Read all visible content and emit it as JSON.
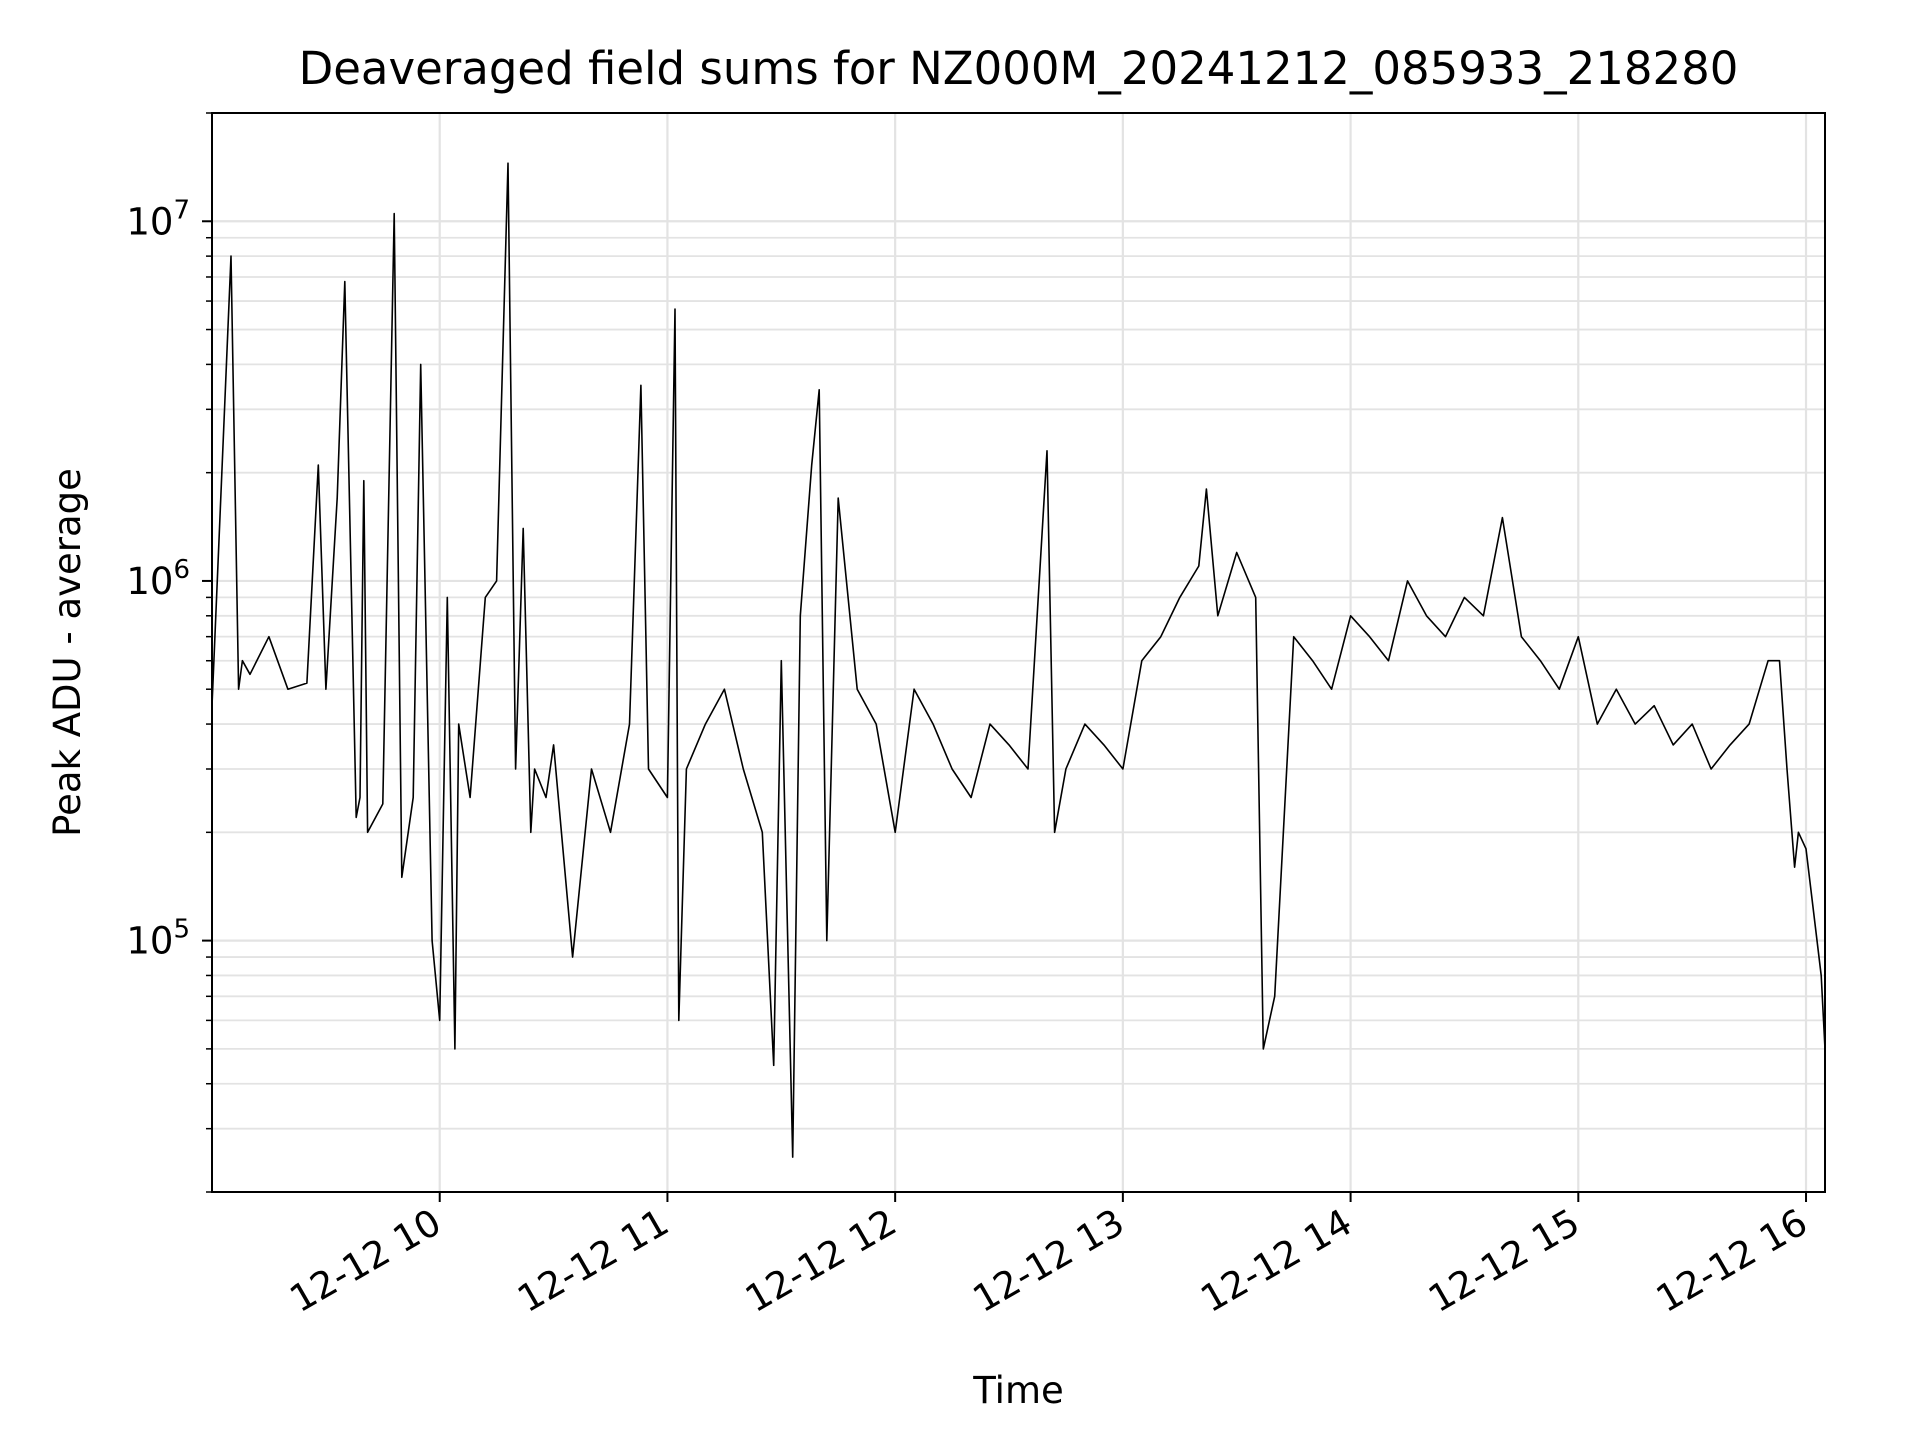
{
  "chart_data": {
    "type": "line",
    "title": "Deaveraged field sums for NZ000M_20241212_085933_218280",
    "xlabel": "Time",
    "ylabel": "Peak ADU - average",
    "yscale": "log",
    "xlim": [
      "2024-12-12 09:00",
      "2024-12-12 16:05"
    ],
    "ylim": [
      20000,
      20000000
    ],
    "x_ticks": [
      {
        "time": "2024-12-12 10:00",
        "label": "12-12 10"
      },
      {
        "time": "2024-12-12 11:00",
        "label": "12-12 11"
      },
      {
        "time": "2024-12-12 12:00",
        "label": "12-12 12"
      },
      {
        "time": "2024-12-12 13:00",
        "label": "12-12 13"
      },
      {
        "time": "2024-12-12 14:00",
        "label": "12-12 14"
      },
      {
        "time": "2024-12-12 15:00",
        "label": "12-12 15"
      },
      {
        "time": "2024-12-12 16:00",
        "label": "12-12 16"
      }
    ],
    "y_ticks": [
      {
        "value": 100000,
        "label_base": "10",
        "label_exp": "5"
      },
      {
        "value": 1000000,
        "label_base": "10",
        "label_exp": "6"
      },
      {
        "value": 10000000,
        "label_base": "10",
        "label_exp": "7"
      }
    ],
    "grid": true,
    "line_color": "#000000",
    "series": [
      {
        "x": [
          "2024-12-12 09:00",
          "2024-12-12 09:05",
          "2024-12-12 09:07",
          "2024-12-12 09:08",
          "2024-12-12 09:10",
          "2024-12-12 09:15",
          "2024-12-12 09:20",
          "2024-12-12 09:25",
          "2024-12-12 09:28",
          "2024-12-12 09:30",
          "2024-12-12 09:33",
          "2024-12-12 09:35",
          "2024-12-12 09:38",
          "2024-12-12 09:39",
          "2024-12-12 09:40",
          "2024-12-12 09:41",
          "2024-12-12 09:45",
          "2024-12-12 09:48",
          "2024-12-12 09:50",
          "2024-12-12 09:53",
          "2024-12-12 09:55",
          "2024-12-12 09:58",
          "2024-12-12 10:00",
          "2024-12-12 10:02",
          "2024-12-12 10:04",
          "2024-12-12 10:05",
          "2024-12-12 10:08",
          "2024-12-12 10:12",
          "2024-12-12 10:15",
          "2024-12-12 10:18",
          "2024-12-12 10:20",
          "2024-12-12 10:22",
          "2024-12-12 10:24",
          "2024-12-12 10:25",
          "2024-12-12 10:28",
          "2024-12-12 10:30",
          "2024-12-12 10:35",
          "2024-12-12 10:40",
          "2024-12-12 10:45",
          "2024-12-12 10:50",
          "2024-12-12 10:53",
          "2024-12-12 10:55",
          "2024-12-12 11:00",
          "2024-12-12 11:02",
          "2024-12-12 11:03",
          "2024-12-12 11:05",
          "2024-12-12 11:10",
          "2024-12-12 11:15",
          "2024-12-12 11:20",
          "2024-12-12 11:25",
          "2024-12-12 11:28",
          "2024-12-12 11:30",
          "2024-12-12 11:33",
          "2024-12-12 11:35",
          "2024-12-12 11:38",
          "2024-12-12 11:40",
          "2024-12-12 11:42",
          "2024-12-12 11:45",
          "2024-12-12 11:50",
          "2024-12-12 11:55",
          "2024-12-12 12:00",
          "2024-12-12 12:05",
          "2024-12-12 12:10",
          "2024-12-12 12:15",
          "2024-12-12 12:20",
          "2024-12-12 12:25",
          "2024-12-12 12:30",
          "2024-12-12 12:35",
          "2024-12-12 12:40",
          "2024-12-12 12:42",
          "2024-12-12 12:45",
          "2024-12-12 12:50",
          "2024-12-12 12:55",
          "2024-12-12 13:00",
          "2024-12-12 13:05",
          "2024-12-12 13:10",
          "2024-12-12 13:15",
          "2024-12-12 13:20",
          "2024-12-12 13:22",
          "2024-12-12 13:25",
          "2024-12-12 13:30",
          "2024-12-12 13:35",
          "2024-12-12 13:37",
          "2024-12-12 13:40",
          "2024-12-12 13:45",
          "2024-12-12 13:50",
          "2024-12-12 13:55",
          "2024-12-12 14:00",
          "2024-12-12 14:05",
          "2024-12-12 14:10",
          "2024-12-12 14:15",
          "2024-12-12 14:20",
          "2024-12-12 14:25",
          "2024-12-12 14:30",
          "2024-12-12 14:35",
          "2024-12-12 14:40",
          "2024-12-12 14:45",
          "2024-12-12 14:50",
          "2024-12-12 14:55",
          "2024-12-12 15:00",
          "2024-12-12 15:05",
          "2024-12-12 15:10",
          "2024-12-12 15:15",
          "2024-12-12 15:20",
          "2024-12-12 15:25",
          "2024-12-12 15:30",
          "2024-12-12 15:35",
          "2024-12-12 15:40",
          "2024-12-12 15:45",
          "2024-12-12 15:50",
          "2024-12-12 15:53",
          "2024-12-12 15:55",
          "2024-12-12 15:57",
          "2024-12-12 15:58",
          "2024-12-12 16:00",
          "2024-12-12 16:02",
          "2024-12-12 16:04",
          "2024-12-12 16:05"
        ],
        "values": [
          450000,
          8000000,
          500000,
          600000,
          550000,
          700000,
          500000,
          520000,
          2100000,
          500000,
          1700000,
          6800000,
          220000,
          250000,
          1900000,
          200000,
          240000,
          10500000,
          150000,
          250000,
          4000000,
          100000,
          60000,
          900000,
          50000,
          400000,
          250000,
          900000,
          1000000,
          14500000,
          300000,
          1400000,
          200000,
          300000,
          250000,
          350000,
          90000,
          300000,
          200000,
          400000,
          3500000,
          300000,
          250000,
          5700000,
          60000,
          300000,
          400000,
          500000,
          300000,
          200000,
          45000,
          600000,
          25000,
          800000,
          2100000,
          3400000,
          100000,
          1700000,
          500000,
          400000,
          200000,
          500000,
          400000,
          300000,
          250000,
          400000,
          350000,
          300000,
          2300000,
          200000,
          300000,
          400000,
          350000,
          300000,
          600000,
          700000,
          900000,
          1100000,
          1800000,
          800000,
          1200000,
          900000,
          50000,
          70000,
          700000,
          600000,
          500000,
          800000,
          700000,
          600000,
          1000000,
          800000,
          700000,
          900000,
          800000,
          1500000,
          700000,
          600000,
          500000,
          700000,
          400000,
          500000,
          400000,
          450000,
          350000,
          400000,
          300000,
          350000,
          400000,
          600000,
          600000,
          300000,
          160000,
          200000,
          180000,
          120000,
          80000,
          50000
        ]
      }
    ]
  }
}
